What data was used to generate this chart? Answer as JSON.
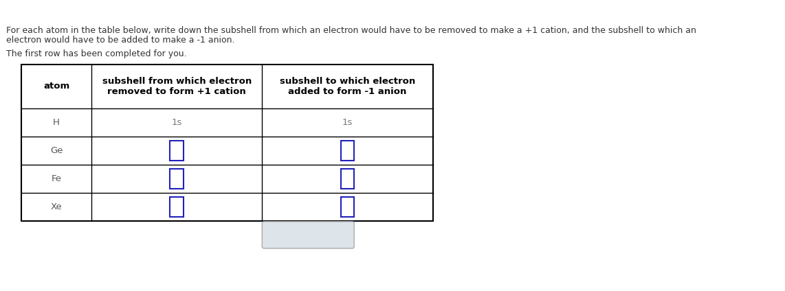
{
  "title_line1": "For each atom in the table below, write down the subshell from which an electron would have to be removed to make a +1 cation, and the subshell to which an",
  "title_line2": "electron would have to be added to make a -1 anion.",
  "subtitle_text": "The first row has been completed for you.",
  "col_headers": [
    "atom",
    "subshell from which electron\nremoved to form +1 cation",
    "subshell to which electron\nadded to form -1 anion"
  ],
  "rows": [
    {
      "atom": "H",
      "col2": "1s",
      "col3": "1s",
      "filled": true
    },
    {
      "atom": "Ge",
      "col2": "",
      "col3": "",
      "filled": false
    },
    {
      "atom": "Fe",
      "col2": "",
      "col3": "",
      "filled": false
    },
    {
      "atom": "Xe",
      "col2": "",
      "col3": "",
      "filled": false
    }
  ],
  "table_border_color": "#000000",
  "header_text_color": "#000000",
  "atom_text_color": "#555555",
  "filled_text_color": "#777777",
  "input_box_color": "#2222bb",
  "background_color": "#ffffff",
  "text_color": "#333333",
  "figsize": [
    11.42,
    4.24
  ],
  "button_color": "#dde4ea",
  "button_border_color": "#aaaaaa",
  "x_symbol_color": "#888888",
  "undo_symbol_color": "#3344aa"
}
